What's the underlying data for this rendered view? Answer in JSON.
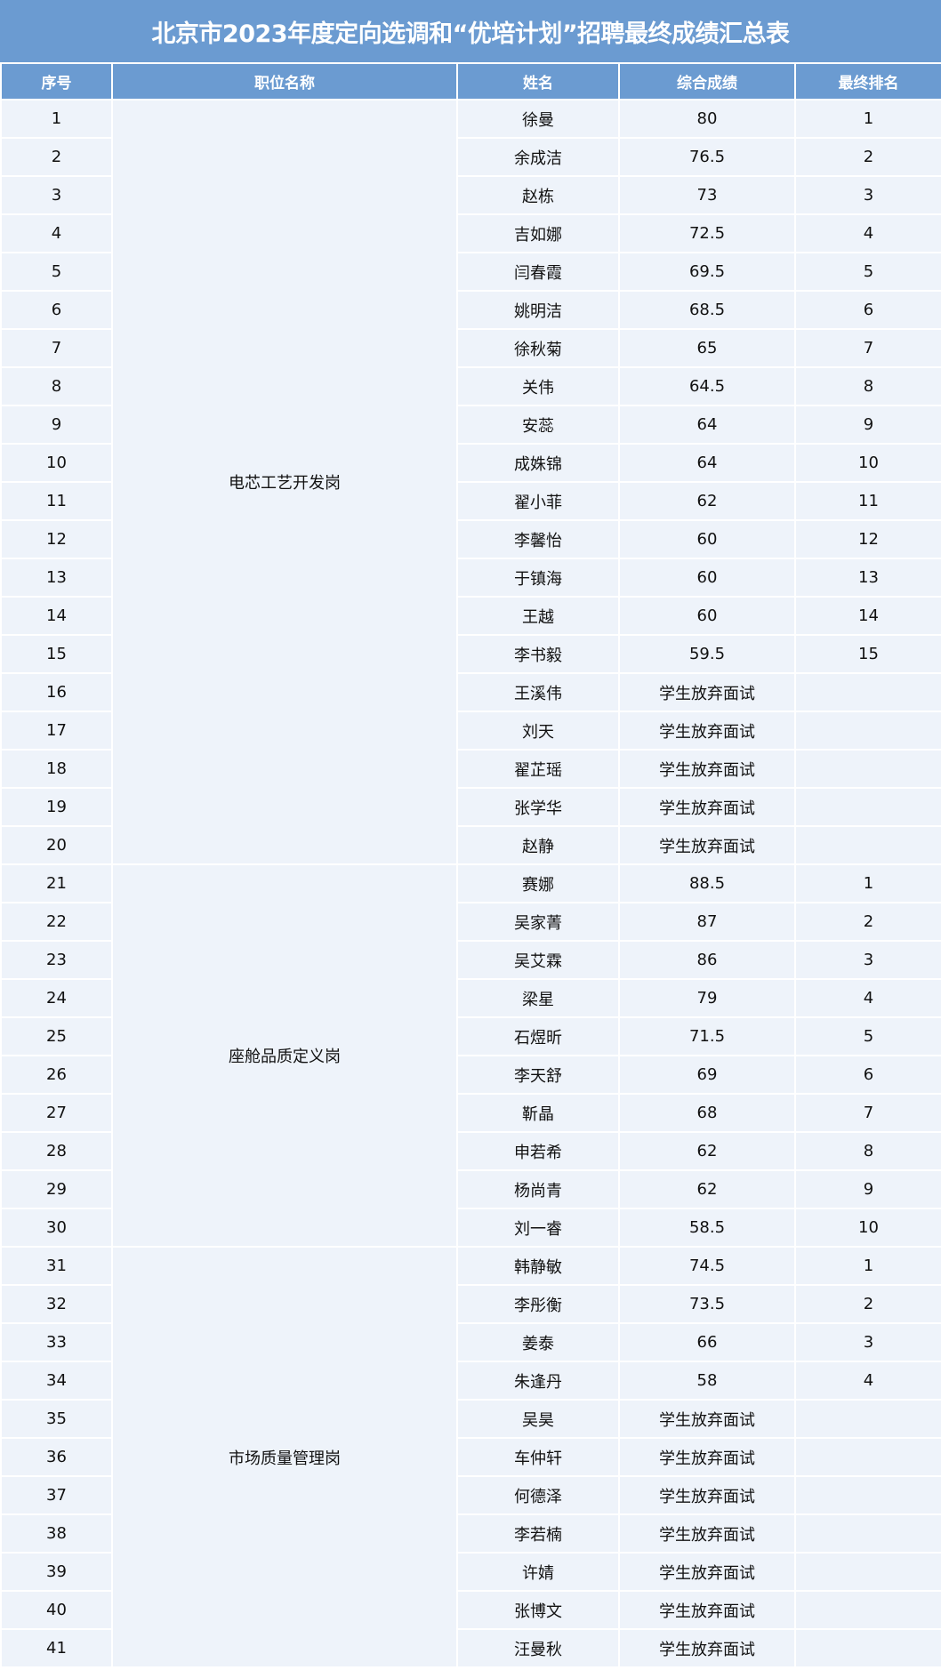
{
  "title": "北京市2023年度定向选调和“优培计划”招聘最终成绩汇总表",
  "headers": [
    "序号",
    "职位名称",
    "姓名",
    "综合成绩",
    "最终排名"
  ],
  "colors": {
    "header_bg": "#6b9bd1",
    "row_bg": "#eef3fa",
    "grid": "#ffffff"
  },
  "groups": [
    {
      "position": "电芯工艺开发岗",
      "rows": [
        {
          "no": "1",
          "name": "徐曼",
          "score": "80",
          "rank": "1"
        },
        {
          "no": "2",
          "name": "余成洁",
          "score": "76.5",
          "rank": "2"
        },
        {
          "no": "3",
          "name": "赵栋",
          "score": "73",
          "rank": "3"
        },
        {
          "no": "4",
          "name": "吉如娜",
          "score": "72.5",
          "rank": "4"
        },
        {
          "no": "5",
          "name": "闫春霞",
          "score": "69.5",
          "rank": "5"
        },
        {
          "no": "6",
          "name": "姚明洁",
          "score": "68.5",
          "rank": "6"
        },
        {
          "no": "7",
          "name": "徐秋菊",
          "score": "65",
          "rank": "7"
        },
        {
          "no": "8",
          "name": "关伟",
          "score": "64.5",
          "rank": "8"
        },
        {
          "no": "9",
          "name": "安蕊",
          "score": "64",
          "rank": "9"
        },
        {
          "no": "10",
          "name": "成姝锦",
          "score": "64",
          "rank": "10"
        },
        {
          "no": "11",
          "name": "翟小菲",
          "score": "62",
          "rank": "11"
        },
        {
          "no": "12",
          "name": "李馨怡",
          "score": "60",
          "rank": "12"
        },
        {
          "no": "13",
          "name": "于镇海",
          "score": "60",
          "rank": "13"
        },
        {
          "no": "14",
          "name": "王越",
          "score": "60",
          "rank": "14"
        },
        {
          "no": "15",
          "name": "李书毅",
          "score": "59.5",
          "rank": "15"
        },
        {
          "no": "16",
          "name": "王溪伟",
          "score": "学生放弃面试",
          "rank": ""
        },
        {
          "no": "17",
          "name": "刘天",
          "score": "学生放弃面试",
          "rank": ""
        },
        {
          "no": "18",
          "name": "翟芷瑶",
          "score": "学生放弃面试",
          "rank": ""
        },
        {
          "no": "19",
          "name": "张学华",
          "score": "学生放弃面试",
          "rank": ""
        },
        {
          "no": "20",
          "name": "赵静",
          "score": "学生放弃面试",
          "rank": ""
        }
      ]
    },
    {
      "position": "座舱品质定义岗",
      "rows": [
        {
          "no": "21",
          "name": "赛娜",
          "score": "88.5",
          "rank": "1"
        },
        {
          "no": "22",
          "name": "吴家菁",
          "score": "87",
          "rank": "2"
        },
        {
          "no": "23",
          "name": "吴艾霖",
          "score": "86",
          "rank": "3"
        },
        {
          "no": "24",
          "name": "梁星",
          "score": "79",
          "rank": "4"
        },
        {
          "no": "25",
          "name": "石煜昕",
          "score": "71.5",
          "rank": "5"
        },
        {
          "no": "26",
          "name": "李天舒",
          "score": "69",
          "rank": "6"
        },
        {
          "no": "27",
          "name": "靳晶",
          "score": "68",
          "rank": "7"
        },
        {
          "no": "28",
          "name": "申若希",
          "score": "62",
          "rank": "8"
        },
        {
          "no": "29",
          "name": "杨尚青",
          "score": "62",
          "rank": "9"
        },
        {
          "no": "30",
          "name": "刘一睿",
          "score": "58.5",
          "rank": "10"
        }
      ]
    },
    {
      "position": "市场质量管理岗",
      "rows": [
        {
          "no": "31",
          "name": "韩静敏",
          "score": "74.5",
          "rank": "1"
        },
        {
          "no": "32",
          "name": "李彤衡",
          "score": "73.5",
          "rank": "2"
        },
        {
          "no": "33",
          "name": "姜泰",
          "score": "66",
          "rank": "3"
        },
        {
          "no": "34",
          "name": "朱逢丹",
          "score": "58",
          "rank": "4"
        },
        {
          "no": "35",
          "name": "吴昊",
          "score": "学生放弃面试",
          "rank": ""
        },
        {
          "no": "36",
          "name": "车仲轩",
          "score": "学生放弃面试",
          "rank": ""
        },
        {
          "no": "37",
          "name": "何德泽",
          "score": "学生放弃面试",
          "rank": ""
        },
        {
          "no": "38",
          "name": "李若楠",
          "score": "学生放弃面试",
          "rank": ""
        },
        {
          "no": "39",
          "name": "许婧",
          "score": "学生放弃面试",
          "rank": ""
        },
        {
          "no": "40",
          "name": "张博文",
          "score": "学生放弃面试",
          "rank": ""
        },
        {
          "no": "41",
          "name": "汪曼秋",
          "score": "学生放弃面试",
          "rank": ""
        }
      ]
    }
  ]
}
